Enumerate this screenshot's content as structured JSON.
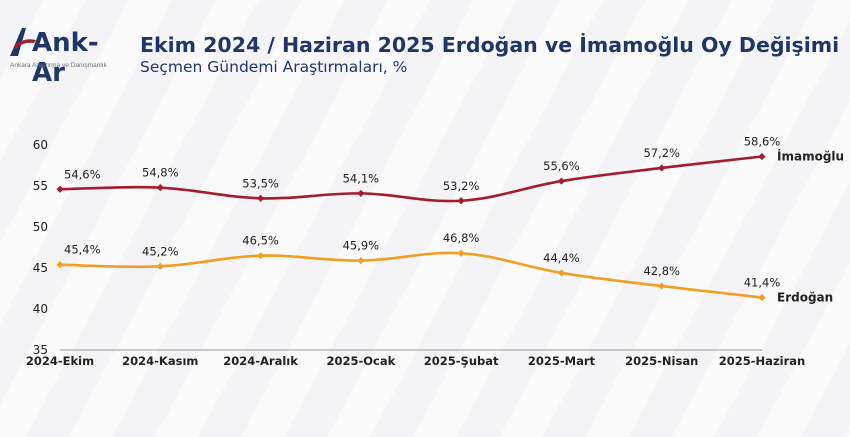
{
  "header": {
    "title": "Ekim 2024 / Haziran 2025 Erdoğan ve İmamoğlu Oy Değişimi",
    "subtitle": "Seçmen Gündemi Araştırmaları, %"
  },
  "logo": {
    "name": "Ank-Ar",
    "tagline": "Ankara Araştırma ve Danışmanlık",
    "color": "#1f3768"
  },
  "chart_data": {
    "type": "line",
    "title": "Ekim 2024 / Haziran 2025 Erdoğan ve İmamoğlu Oy Değişimi",
    "subtitle": "Seçmen Gündemi Araştırmaları, %",
    "categories": [
      "2024-Ekim",
      "2024-Kasım",
      "2024-Aralık",
      "2025-Ocak",
      "2025-Şubat",
      "2025-Mart",
      "2025-Nisan",
      "2025-Haziran"
    ],
    "series": [
      {
        "name": "İmamoğlu",
        "color": "#a31d2e",
        "values": [
          54.6,
          54.8,
          53.5,
          54.1,
          53.2,
          55.6,
          57.2,
          58.6
        ],
        "labels": [
          "54,6%",
          "54,8%",
          "53,5%",
          "54,1%",
          "53,2%",
          "55,6%",
          "57,2%",
          "58,6%"
        ]
      },
      {
        "name": "Erdoğan",
        "color": "#f0a01e",
        "values": [
          45.4,
          45.2,
          46.5,
          45.9,
          46.8,
          44.4,
          42.8,
          41.4
        ],
        "labels": [
          "45,4%",
          "45,2%",
          "46,5%",
          "45,9%",
          "46,8%",
          "44,4%",
          "42,8%",
          "41,4%"
        ]
      }
    ],
    "ylim": [
      35,
      60
    ],
    "yticks": [
      "35",
      "40",
      "45",
      "50",
      "55",
      "60"
    ],
    "ytick_values": [
      35,
      40,
      45,
      50,
      55,
      60
    ],
    "grid": false,
    "legend": "inline-right"
  }
}
